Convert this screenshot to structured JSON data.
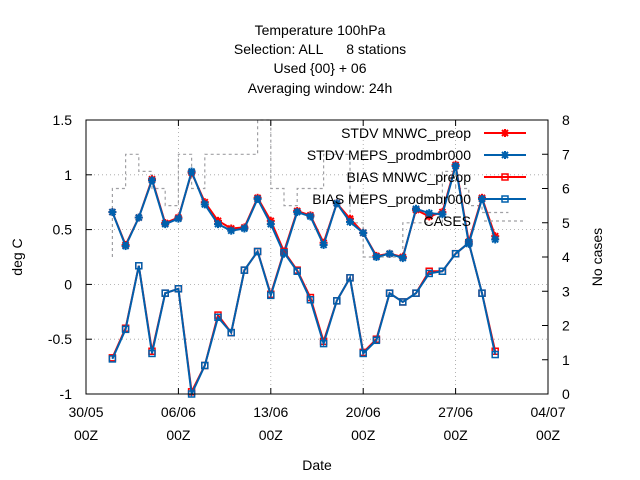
{
  "chart_data": {
    "type": "line",
    "title_lines": [
      "Temperature 100hPa",
      "Selection: ALL      8 stations",
      "Used {00} + 06",
      "Averaging window: 24h"
    ],
    "xlabel": "Date",
    "ylabel": "deg C",
    "y2label": "No cases",
    "x_unit": "day",
    "x_ticks": [
      {
        "x": "2025-05-30",
        "line1": "30/05",
        "line2": "00Z"
      },
      {
        "x": "2025-06-06",
        "line1": "06/06",
        "line2": "00Z"
      },
      {
        "x": "2025-06-13",
        "line1": "13/06",
        "line2": "00Z"
      },
      {
        "x": "2025-06-20",
        "line1": "20/06",
        "line2": "00Z"
      },
      {
        "x": "2025-06-27",
        "line1": "27/06",
        "line2": "00Z"
      },
      {
        "x": "2025-07-04",
        "line1": "04/07",
        "line2": "00Z"
      }
    ],
    "xlim": [
      "2025-05-30",
      "2025-07-04"
    ],
    "ylim": [
      -1,
      1.5
    ],
    "y_ticks": [
      -1,
      -0.5,
      0,
      0.5,
      1,
      1.5
    ],
    "y2lim": [
      0,
      8
    ],
    "y2_ticks": [
      0,
      1,
      2,
      3,
      4,
      5,
      6,
      7,
      8
    ],
    "legend_position": "top-right",
    "x": [
      "2025-06-01",
      "2025-06-02",
      "2025-06-03",
      "2025-06-04",
      "2025-06-05",
      "2025-06-06",
      "2025-06-07",
      "2025-06-08",
      "2025-06-09",
      "2025-06-10",
      "2025-06-11",
      "2025-06-12",
      "2025-06-13",
      "2025-06-14",
      "2025-06-15",
      "2025-06-16",
      "2025-06-17",
      "2025-06-18",
      "2025-06-19",
      "2025-06-20",
      "2025-06-21",
      "2025-06-22",
      "2025-06-23",
      "2025-06-24",
      "2025-06-25",
      "2025-06-26",
      "2025-06-27",
      "2025-06-28",
      "2025-06-29",
      "2025-06-30"
    ],
    "series": [
      {
        "name": "STDV MNWC_preop",
        "color": "#ff0000",
        "marker": "x",
        "axis": "y",
        "values": [
          0.66,
          0.36,
          0.61,
          0.96,
          0.56,
          0.61,
          1.02,
          0.75,
          0.58,
          0.51,
          0.52,
          0.79,
          0.58,
          0.3,
          0.67,
          0.63,
          0.38,
          0.74,
          0.6,
          0.47,
          0.26,
          0.28,
          0.25,
          0.68,
          0.62,
          0.66,
          1.09,
          0.39,
          0.79,
          0.44
        ]
      },
      {
        "name": "STDV MEPS_prodmbr000",
        "color": "#0060ad",
        "marker": "x",
        "axis": "y",
        "values": [
          0.66,
          0.35,
          0.61,
          0.95,
          0.55,
          0.6,
          1.03,
          0.73,
          0.55,
          0.49,
          0.51,
          0.78,
          0.55,
          0.28,
          0.66,
          0.62,
          0.36,
          0.74,
          0.57,
          0.47,
          0.25,
          0.28,
          0.24,
          0.69,
          0.65,
          0.64,
          1.08,
          0.37,
          0.78,
          0.41
        ]
      },
      {
        "name": "BIAS MNWC_preop",
        "color": "#ff0000",
        "marker": "square",
        "axis": "y",
        "values": [
          -0.67,
          -0.4,
          0.17,
          -0.61,
          -0.08,
          -0.04,
          -0.98,
          -0.74,
          -0.28,
          -0.44,
          0.13,
          0.3,
          -0.09,
          0.3,
          0.13,
          -0.12,
          -0.52,
          -0.15,
          0.06,
          -0.62,
          -0.5,
          -0.08,
          -0.16,
          -0.08,
          0.12,
          0.12,
          0.28,
          0.38,
          -0.08,
          -0.61
        ]
      },
      {
        "name": "BIAS MEPS_prodmbr000",
        "color": "#0060ad",
        "marker": "square",
        "axis": "y",
        "values": [
          -0.68,
          -0.41,
          0.17,
          -0.63,
          -0.08,
          -0.04,
          -1.0,
          -0.74,
          -0.3,
          -0.44,
          0.13,
          0.3,
          -0.1,
          0.29,
          0.12,
          -0.14,
          -0.54,
          -0.15,
          0.06,
          -0.63,
          -0.51,
          -0.08,
          -0.16,
          -0.08,
          0.1,
          0.12,
          0.28,
          0.38,
          -0.08,
          -0.64
        ]
      },
      {
        "name": "CASES",
        "color": "#a0a0a4",
        "marker": "none",
        "axis": "y2",
        "dashed": true,
        "x": [
          "2025-06-01",
          "2025-06-01",
          "2025-06-02",
          "2025-06-02",
          "2025-06-03",
          "2025-06-03",
          "2025-06-04",
          "2025-06-04",
          "2025-06-05",
          "2025-06-05",
          "2025-06-06",
          "2025-06-06",
          "2025-06-07",
          "2025-06-07",
          "2025-06-08",
          "2025-06-08",
          "2025-06-09",
          "2025-06-09",
          "2025-06-10",
          "2025-06-10",
          "2025-06-11",
          "2025-06-11",
          "2025-06-12",
          "2025-06-12",
          "2025-06-13",
          "2025-06-13",
          "2025-06-14",
          "2025-06-14",
          "2025-06-15",
          "2025-06-15",
          "2025-06-16",
          "2025-06-16",
          "2025-06-17",
          "2025-06-17",
          "2025-06-18",
          "2025-06-18",
          "2025-06-19",
          "2025-06-19",
          "2025-06-20",
          "2025-06-20",
          "2025-06-21",
          "2025-06-21",
          "2025-06-22",
          "2025-06-22",
          "2025-06-23",
          "2025-06-23",
          "2025-06-24",
          "2025-06-24",
          "2025-06-25",
          "2025-06-25",
          "2025-06-26",
          "2025-06-26",
          "2025-06-27",
          "2025-06-27",
          "2025-06-28",
          "2025-06-28",
          "2025-06-29",
          "2025-06-29",
          "2025-06-30",
          "2025-06-30",
          "2025-07-01"
        ],
        "values": [
          4,
          6,
          6,
          7,
          7,
          6.5,
          6.5,
          6,
          6,
          5.5,
          5.5,
          7,
          7,
          6,
          6,
          7,
          7,
          7,
          7,
          7,
          7,
          7,
          7,
          8,
          8,
          6,
          6,
          5.5,
          5.5,
          6,
          6,
          6,
          6,
          7,
          7,
          7,
          7,
          5,
          5,
          4,
          4,
          4,
          4,
          4,
          4,
          5,
          5,
          5,
          5,
          5,
          5,
          6.5,
          6.5,
          6,
          6,
          5.5,
          5.5,
          5.3,
          5.3,
          5.3,
          5.3
        ]
      }
    ]
  }
}
